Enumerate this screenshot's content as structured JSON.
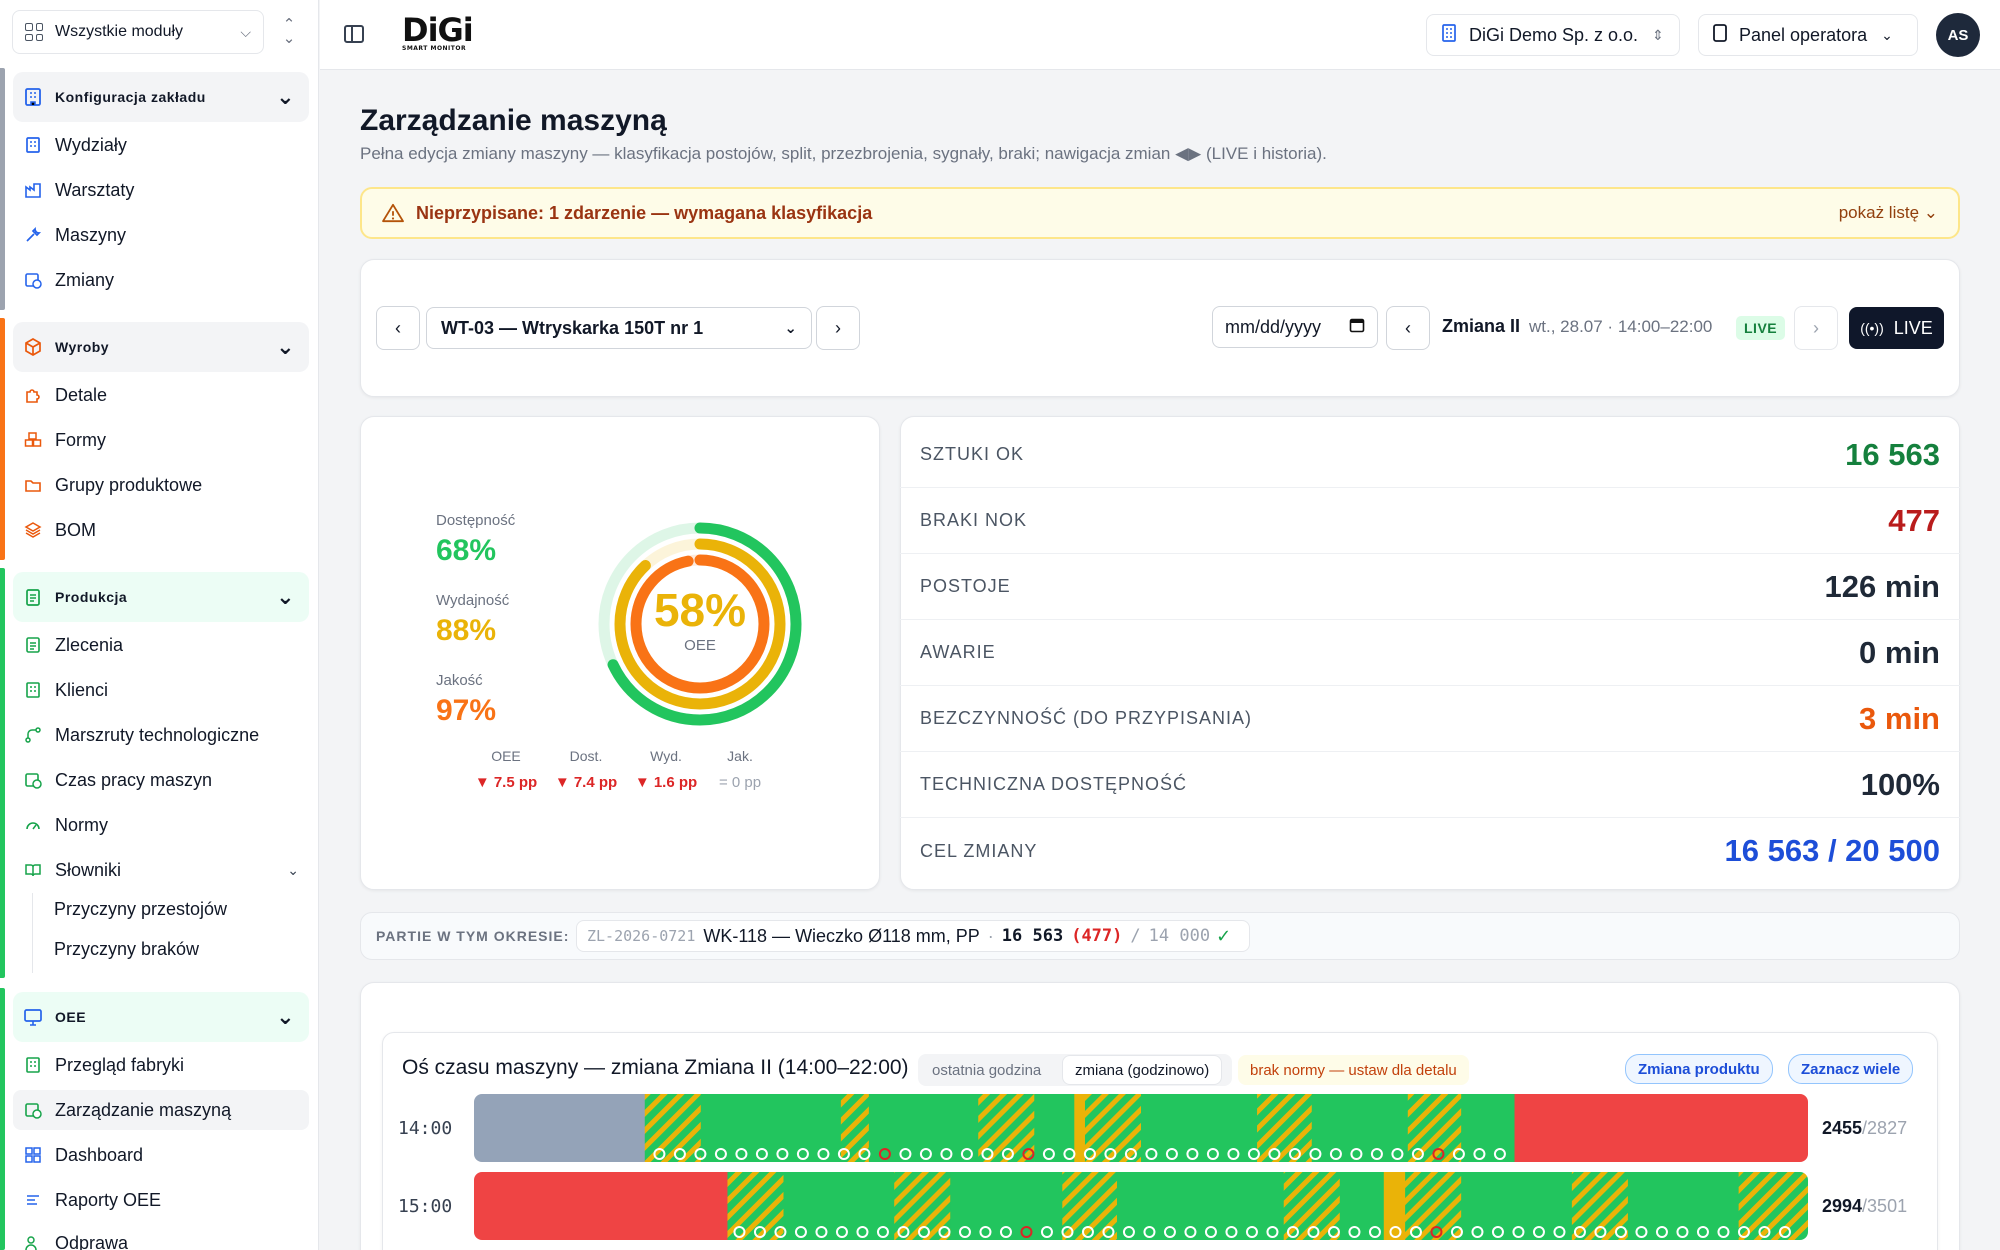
{
  "sidebar": {
    "module_select": "Wszystkie moduły",
    "sections": [
      {
        "title": "Konfiguracja zakładu",
        "items": [
          "Wydziały",
          "Warsztaty",
          "Maszyny",
          "Zmiany"
        ]
      },
      {
        "title": "Wyroby",
        "items": [
          "Detale",
          "Formy",
          "Grupy produktowe",
          "BOM"
        ]
      },
      {
        "title": "Produkcja",
        "items": [
          "Zlecenia",
          "Klienci",
          "Marszruty technologiczne",
          "Czas pracy maszyn",
          "Normy",
          "Słowniki"
        ],
        "subitems": [
          "Przyczyny przestojów",
          "Przyczyny braków"
        ]
      },
      {
        "title": "OEE",
        "items": [
          "Przegląd fabryki",
          "Zarządzanie maszyną",
          "Dashboard",
          "Raporty OEE",
          "Odprawa"
        ]
      }
    ],
    "active_item": "Zarządzanie maszyną"
  },
  "header": {
    "logo": "DiGi",
    "logo_sub": "SMART MONITOR",
    "company": "DiGi Demo Sp. z o.o.",
    "panel": "Panel operatora",
    "avatar": "AS"
  },
  "page": {
    "title": "Zarządzanie maszyną",
    "subtitle": "Pełna edycja zmiany maszyny — klasyfikacja postojów, split, przezbrojenia, sygnały, braki; nawigacja zmian ◀▶ (LIVE i historia)."
  },
  "alert": {
    "text": "Nieprzypisane: 1 zdarzenie — wymagana klasyfikacja",
    "action": "pokaż listę"
  },
  "controls": {
    "machine": "WT-03 — Wtryskarka 150T nr 1",
    "date_placeholder": "mm/dd/yyyy",
    "shift_name": "Zmiana II",
    "shift_time": "wt., 28.07 · 14:00–22:00",
    "live_badge": "LIVE",
    "live_button": "LIVE"
  },
  "oee": {
    "center_value": "58%",
    "center_label": "OEE",
    "metrics": [
      {
        "label": "Dostępność",
        "value": "68%",
        "color": "#22c55e",
        "fraction": 0.68
      },
      {
        "label": "Wydajność",
        "value": "88%",
        "color": "#eab308",
        "fraction": 0.88
      },
      {
        "label": "Jakość",
        "value": "97%",
        "color": "#f97316",
        "fraction": 0.97
      }
    ],
    "deltas": [
      {
        "label": "OEE",
        "value": "▼ 7.5 pp",
        "color": "#dc2626"
      },
      {
        "label": "Dost.",
        "value": "▼ 7.4 pp",
        "color": "#dc2626"
      },
      {
        "label": "Wyd.",
        "value": "▼ 1.6 pp",
        "color": "#dc2626"
      },
      {
        "label": "Jak.",
        "value": "= 0 pp",
        "color": "#9ca3af"
      }
    ]
  },
  "kpis": [
    {
      "label": "SZTUKI OK",
      "value": "16 563",
      "color": "#15803d"
    },
    {
      "label": "BRAKI NOK",
      "value": "477",
      "color": "#b91c1c"
    },
    {
      "label": "POSTOJE",
      "value": "126 min",
      "color": "#1f2937"
    },
    {
      "label": "AWARIE",
      "value": "0 min",
      "color": "#1f2937"
    },
    {
      "label": "BEZCZYNNOŚĆ (DO PRZYPISANIA)",
      "value": "3 min",
      "color": "#ea580c"
    },
    {
      "label": "TECHNICZNA DOSTĘPNOŚĆ",
      "value": "100%",
      "color": "#1f2937"
    },
    {
      "label": "CEL ZMIANY",
      "value": "16 563 / 20 500",
      "color": "#1d4ed8"
    }
  ],
  "batches": {
    "label": "PARTIE W TYM OKRESIE:",
    "order": "ZL-2026-0721",
    "product": "WK-118 — Wieczko Ø118 mm, PP",
    "sep": "·",
    "ok": "16 563",
    "nok": "(477)",
    "slash": "/",
    "target": "14 000",
    "check": "✓"
  },
  "timeline": {
    "title": "Oś czasu maszyny — zmiana Zmiana II (14:00–22:00)",
    "tab_last_hour": "ostatnia godzina",
    "tab_shift": "zmiana (godzinowo)",
    "norm_warning": "brak normy — ustaw dla detalu",
    "btn_product_change": "Zmiana produktu",
    "btn_select_many": "Zaznacz wiele",
    "rows": [
      {
        "hour": "14:00",
        "count": "2455",
        "total": "/2827"
      },
      {
        "hour": "15:00",
        "count": "2994",
        "total": "/3501"
      }
    ]
  }
}
